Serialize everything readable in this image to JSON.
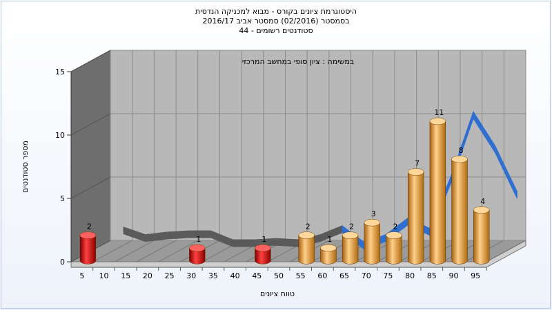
{
  "chart_data": {
    "type": "bar",
    "title_lines": [
      "היסטוגרמת ציונים בקורס - מבוא למכניקה הנדסית",
      "בסמסטר  (02/2016)  סמסטר אביב 2016/17",
      "סטודנטים רשומים - 44"
    ],
    "annotation": "במשימה : ציון סופי במחשב המרכזי",
    "xlabel": "טווח ציונים",
    "ylabel": "מספר סטודנטים",
    "categories": [
      "5",
      "10",
      "15",
      "20",
      "25",
      "30",
      "35",
      "40",
      "45",
      "50",
      "55",
      "60",
      "65",
      "70",
      "75",
      "80",
      "85",
      "90",
      "95"
    ],
    "values": [
      2,
      0,
      0,
      0,
      0,
      1,
      0,
      0,
      1,
      0,
      2,
      1,
      2,
      3,
      2,
      7,
      11,
      8,
      4
    ],
    "bar_colors": [
      "red",
      "red",
      "red",
      "red",
      "red",
      "red",
      "red",
      "red",
      "red",
      "red",
      "orange",
      "orange",
      "orange",
      "orange",
      "orange",
      "orange",
      "orange",
      "orange",
      "orange"
    ],
    "data_labels": [
      "2",
      "",
      "",
      "",
      "",
      "1",
      "",
      "",
      "1",
      "",
      "2",
      "1",
      "2",
      "3",
      "2",
      "7",
      "11",
      "8",
      "4"
    ],
    "yticks": [
      "0",
      "5",
      "10",
      "15"
    ],
    "ylim": [
      0,
      15
    ],
    "grid": true,
    "trend_series": {
      "name": "",
      "x": [
        "10",
        "15",
        "20",
        "25",
        "30",
        "35",
        "40",
        "45",
        "50",
        "55",
        "60",
        "65",
        "70",
        "75",
        "80",
        "85",
        "90",
        "95"
      ],
      "values": [
        1.9,
        1.3,
        1.5,
        1.6,
        1.6,
        0.9,
        0.9,
        1.0,
        0.9,
        1.3,
        2.0,
        0.7,
        1.3,
        2.6,
        1.8,
        6.0,
        11.0,
        8.3
      ],
      "extra_right_value": 4.7
    },
    "colors": {
      "red": "#e01010",
      "orange": "#f0a030",
      "wall_back": "#b8b8b8",
      "wall_side": "#6e6e6e",
      "floor": "#9a9a9a",
      "trend_gray": "#5a5a5a",
      "trend_blue": "#2f6fd0"
    }
  }
}
